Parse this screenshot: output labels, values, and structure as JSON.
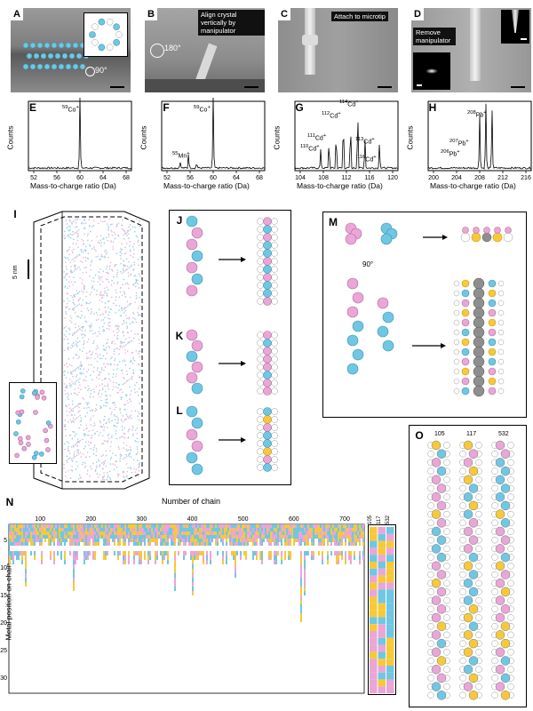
{
  "panels": {
    "A": {
      "label": "A",
      "rotation": "90°"
    },
    "B": {
      "label": "B",
      "caption": "Align crystal vertically by manipulator",
      "rotation": "180°"
    },
    "C": {
      "label": "C",
      "caption": "Attach to microtip"
    },
    "D": {
      "label": "D",
      "caption": "Remove manipulator"
    },
    "E": {
      "label": "E",
      "peak": "59Co+",
      "ylabel": "Counts",
      "xlabel": "Mass-to-charge ratio (Da)",
      "ticks": [
        "52",
        "56",
        "60",
        "64",
        "68"
      ]
    },
    "F": {
      "label": "F",
      "peaks": [
        "59Co+",
        "55Mn+"
      ],
      "ylabel": "Counts",
      "xlabel": "Mass-to-charge ratio (Da)",
      "ticks": [
        "52",
        "56",
        "60",
        "64",
        "68"
      ]
    },
    "G": {
      "label": "G",
      "peaks": [
        "114Cd+",
        "112Cd+",
        "111Cd+",
        "110Cd+",
        "113Cd+",
        "116Cd+"
      ],
      "ylabel": "Counts",
      "xlabel": "Mass-to-charge ratio (Da)",
      "ticks": [
        "104",
        "108",
        "112",
        "116",
        "120"
      ]
    },
    "H": {
      "label": "H",
      "peaks": [
        "208Pb+",
        "207Pb+",
        "206Pb+"
      ],
      "ylabel": "Counts",
      "xlabel": "Mass-to-charge ratio (Da)",
      "ticks": [
        "200",
        "204",
        "208",
        "212",
        "216"
      ]
    },
    "I": {
      "label": "I",
      "scale": "5 nm"
    },
    "J": {
      "label": "J"
    },
    "K": {
      "label": "K"
    },
    "L": {
      "label": "L"
    },
    "M": {
      "label": "M",
      "rotation": "90°"
    },
    "N": {
      "label": "N",
      "xlabel": "Number of chain",
      "ylabel": "Metal position on chain",
      "xticks": [
        "100",
        "200",
        "300",
        "400",
        "500",
        "600",
        "700"
      ],
      "yticks": [
        "5",
        "10",
        "15",
        "20",
        "25",
        "30"
      ],
      "side_labels": [
        "105",
        "117",
        "532"
      ]
    },
    "O": {
      "label": "O",
      "columns": [
        "105",
        "117",
        "532"
      ]
    }
  },
  "colors": {
    "blue": "#6fc7e3",
    "pink": "#e9a6d6",
    "yellow": "#f7c93a"
  }
}
